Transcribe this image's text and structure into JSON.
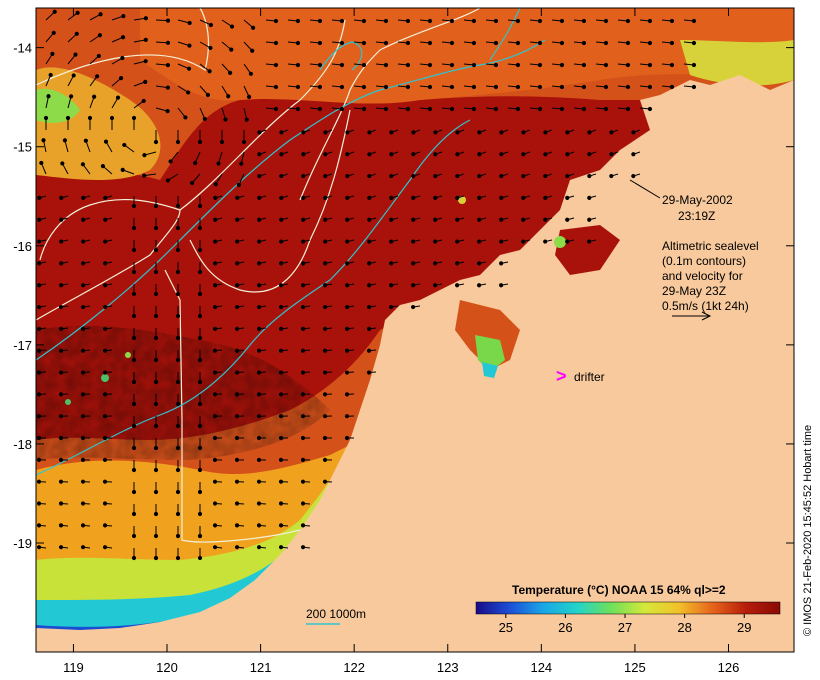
{
  "chart_data": {
    "type": "heatmap",
    "title": "Temperature (°C) NOAA 15 64% ql>=2",
    "x_axis": {
      "range": [
        118.6,
        126.7
      ],
      "ticks": [
        119,
        120,
        121,
        122,
        123,
        124,
        125,
        126
      ]
    },
    "y_axis": {
      "range": [
        -20.1,
        -13.6
      ],
      "ticks": [
        -14,
        -15,
        -16,
        -17,
        -18,
        -19
      ]
    },
    "colorbar": {
      "range": [
        24.5,
        29.6
      ],
      "ticks": [
        25,
        26,
        27,
        28,
        29
      ],
      "colors": [
        "#1a0a8a",
        "#1d4fd6",
        "#19a6e8",
        "#22d4c8",
        "#6ee05a",
        "#d4e83a",
        "#f2c12a",
        "#e8641c",
        "#b51d0a",
        "#8a0a05"
      ]
    },
    "colors": {
      "land": "#f7c99c",
      "warm_core": "#a8120a",
      "contour": "#f3f0d8",
      "depth_contour": "#2fc4d0",
      "drifter": "#ff00ff",
      "arrow": "#000000"
    },
    "annotations": {
      "date": "29-May-2002",
      "time": "23:19Z",
      "legend_lines": [
        "Altimetric sealevel",
        "(0.1m contours)",
        "and velocity for",
        "29-May 23Z",
        "0.5m/s (1kt 24h)"
      ],
      "drifter_label": "drifter",
      "depth_label": "200  1000m",
      "credit": "© IMOS 21-Feb-2020 15:45:52 Hobart time"
    }
  }
}
